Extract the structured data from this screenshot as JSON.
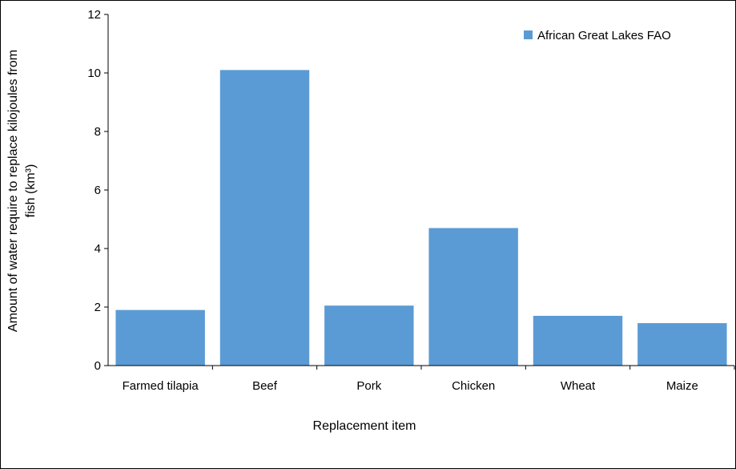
{
  "chart_data": {
    "type": "bar",
    "categories": [
      "Farmed tilapia",
      "Beef",
      "Pork",
      "Chicken",
      "Wheat",
      "Maize"
    ],
    "series": [
      {
        "name": "African Great Lakes FAO",
        "color": "#5b9bd5",
        "values": [
          1.9,
          10.1,
          2.05,
          4.7,
          1.7,
          1.45
        ]
      }
    ],
    "xlabel": "Replacement item",
    "ylabel_lines": [
      "Amount of water require to replace kilojoules from",
      "fish (km³)"
    ],
    "ylim": [
      0,
      12
    ],
    "yticks": [
      0,
      2,
      4,
      6,
      8,
      10,
      12
    ],
    "grid": false,
    "legend_position": "top-right"
  }
}
